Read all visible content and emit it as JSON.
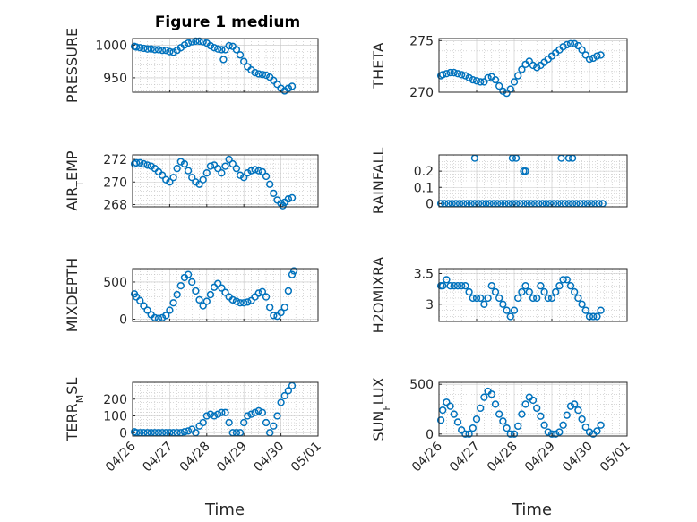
{
  "figure_title": "Figure 1 medium",
  "xlabel": "Time",
  "x_ticks": [
    "04/26",
    "04/27",
    "04/28",
    "04/29",
    "04/30",
    "05/01"
  ],
  "marker_color": "#0072BD",
  "chart_data": [
    {
      "type": "scatter",
      "ylabel": "PRESSURE",
      "ylim": [
        928,
        1010
      ],
      "yticks": [
        950,
        1000
      ],
      "xlim": [
        0,
        5
      ],
      "grid": true,
      "x": [
        0.05,
        0.1,
        0.2,
        0.3,
        0.4,
        0.5,
        0.6,
        0.7,
        0.8,
        0.9,
        1.0,
        1.1,
        1.2,
        1.3,
        1.4,
        1.5,
        1.6,
        1.7,
        1.8,
        1.9,
        2.0,
        2.1,
        2.2,
        2.3,
        2.4,
        2.45,
        2.5,
        2.6,
        2.7,
        2.8,
        2.9,
        3.0,
        3.1,
        3.2,
        3.3,
        3.4,
        3.5,
        3.6,
        3.7,
        3.8,
        3.9,
        4.0,
        4.1,
        4.2,
        4.3
      ],
      "y": [
        998,
        997,
        996,
        995,
        994,
        994,
        993,
        993,
        992,
        992,
        990,
        989,
        992,
        996,
        1000,
        1003,
        1005,
        1006,
        1006,
        1005,
        1003,
        999,
        996,
        994,
        993,
        978,
        993,
        999,
        998,
        993,
        985,
        975,
        967,
        962,
        958,
        956,
        955,
        954,
        951,
        946,
        940,
        934,
        930,
        934,
        937
      ]
    },
    {
      "type": "scatter",
      "ylabel": "THETA",
      "ylim": [
        270,
        275.2
      ],
      "yticks": [
        270,
        275
      ],
      "xlim": [
        0,
        5
      ],
      "grid": true,
      "x": [
        0.05,
        0.1,
        0.2,
        0.3,
        0.4,
        0.5,
        0.6,
        0.7,
        0.8,
        0.9,
        1.0,
        1.1,
        1.2,
        1.3,
        1.4,
        1.5,
        1.6,
        1.7,
        1.8,
        1.9,
        2.0,
        2.1,
        2.2,
        2.3,
        2.4,
        2.5,
        2.6,
        2.7,
        2.8,
        2.9,
        3.0,
        3.1,
        3.2,
        3.3,
        3.4,
        3.5,
        3.6,
        3.7,
        3.8,
        3.9,
        4.0,
        4.1,
        4.2,
        4.3
      ],
      "y": [
        271.6,
        271.7,
        271.8,
        271.9,
        271.9,
        271.8,
        271.7,
        271.6,
        271.4,
        271.2,
        271.1,
        271.0,
        271.0,
        271.4,
        271.5,
        271.2,
        270.6,
        270.1,
        269.9,
        270.3,
        271.0,
        271.6,
        272.2,
        272.7,
        273.0,
        272.6,
        272.4,
        272.6,
        272.9,
        273.2,
        273.5,
        273.8,
        274.1,
        274.4,
        274.6,
        274.7,
        274.7,
        274.5,
        274.1,
        273.6,
        273.2,
        273.3,
        273.5,
        273.6
      ]
    },
    {
      "type": "scatter",
      "ylabel": "AIR_TEMP",
      "ylim": [
        267.8,
        272.4
      ],
      "yticks": [
        268,
        270,
        272
      ],
      "xlim": [
        0,
        5
      ],
      "grid": true,
      "x": [
        0.05,
        0.1,
        0.2,
        0.3,
        0.4,
        0.5,
        0.6,
        0.7,
        0.8,
        0.9,
        1.0,
        1.1,
        1.2,
        1.3,
        1.4,
        1.5,
        1.6,
        1.7,
        1.8,
        1.9,
        2.0,
        2.1,
        2.2,
        2.3,
        2.4,
        2.5,
        2.6,
        2.7,
        2.8,
        2.9,
        3.0,
        3.1,
        3.2,
        3.3,
        3.4,
        3.5,
        3.6,
        3.7,
        3.8,
        3.9,
        4.0,
        4.05,
        4.1,
        4.2,
        4.3
      ],
      "y": [
        271.6,
        271.7,
        271.7,
        271.6,
        271.5,
        271.4,
        271.2,
        270.9,
        270.6,
        270.2,
        270.0,
        270.4,
        271.2,
        271.8,
        271.6,
        271.0,
        270.4,
        270.0,
        269.8,
        270.2,
        270.8,
        271.4,
        271.5,
        271.2,
        270.8,
        271.4,
        272.0,
        271.6,
        271.2,
        270.6,
        270.4,
        270.8,
        271.0,
        271.1,
        271.0,
        270.9,
        270.5,
        269.8,
        269.0,
        268.4,
        268.1,
        267.9,
        268.2,
        268.5,
        268.6
      ]
    },
    {
      "type": "scatter",
      "ylabel": "RAINFALL",
      "ylim": [
        -0.02,
        0.3
      ],
      "yticks": [
        0,
        0.1,
        0.2
      ],
      "xlim": [
        0,
        5
      ],
      "grid": true,
      "x": [
        0.05,
        0.15,
        0.25,
        0.35,
        0.45,
        0.55,
        0.65,
        0.75,
        0.85,
        0.95,
        1.05,
        1.15,
        1.25,
        1.35,
        1.45,
        1.55,
        1.65,
        1.75,
        1.85,
        1.95,
        2.05,
        2.15,
        2.25,
        2.35,
        2.45,
        2.55,
        2.65,
        2.75,
        2.85,
        2.95,
        3.05,
        3.15,
        3.25,
        3.35,
        3.45,
        3.55,
        3.65,
        3.75,
        3.85,
        3.95,
        4.05,
        4.15,
        4.25,
        4.35,
        0.95,
        1.95,
        2.05,
        2.25,
        2.3,
        3.25,
        3.45,
        3.55
      ],
      "y": [
        0,
        0,
        0,
        0,
        0,
        0,
        0,
        0,
        0,
        0,
        0,
        0,
        0,
        0,
        0,
        0,
        0,
        0,
        0,
        0,
        0,
        0,
        0,
        0,
        0,
        0,
        0,
        0,
        0,
        0,
        0,
        0,
        0,
        0,
        0,
        0,
        0,
        0,
        0,
        0,
        0,
        0,
        0,
        0,
        0.28,
        0.28,
        0.28,
        0.2,
        0.2,
        0.28,
        0.28,
        0.28
      ]
    },
    {
      "type": "scatter",
      "ylabel": "MIXDEPTH",
      "ylim": [
        -30,
        680
      ],
      "yticks": [
        0,
        500
      ],
      "xlim": [
        0,
        5
      ],
      "grid": true,
      "x": [
        0.05,
        0.1,
        0.2,
        0.3,
        0.4,
        0.5,
        0.6,
        0.7,
        0.8,
        0.9,
        1.0,
        1.1,
        1.2,
        1.3,
        1.4,
        1.5,
        1.6,
        1.7,
        1.8,
        1.9,
        2.0,
        2.1,
        2.2,
        2.3,
        2.4,
        2.5,
        2.6,
        2.7,
        2.8,
        2.9,
        3.0,
        3.1,
        3.2,
        3.3,
        3.4,
        3.5,
        3.6,
        3.7,
        3.8,
        3.9,
        4.0,
        4.1,
        4.2,
        4.3,
        4.35
      ],
      "y": [
        340,
        300,
        250,
        180,
        120,
        60,
        20,
        10,
        20,
        50,
        120,
        220,
        330,
        450,
        560,
        600,
        500,
        380,
        260,
        180,
        240,
        330,
        430,
        480,
        420,
        360,
        300,
        260,
        240,
        220,
        220,
        230,
        250,
        300,
        350,
        370,
        300,
        160,
        50,
        40,
        90,
        160,
        380,
        600,
        650
      ]
    },
    {
      "type": "scatter",
      "ylabel": "H2OMIXRA",
      "ylim": [
        2.72,
        3.58
      ],
      "yticks": [
        3,
        3.5
      ],
      "xlim": [
        0,
        5
      ],
      "grid": true,
      "x": [
        0.05,
        0.1,
        0.2,
        0.3,
        0.4,
        0.5,
        0.6,
        0.7,
        0.8,
        0.9,
        1.0,
        1.1,
        1.2,
        1.3,
        1.4,
        1.5,
        1.6,
        1.7,
        1.8,
        1.9,
        2.0,
        2.1,
        2.2,
        2.3,
        2.4,
        2.5,
        2.6,
        2.7,
        2.8,
        2.9,
        3.0,
        3.1,
        3.2,
        3.3,
        3.4,
        3.5,
        3.6,
        3.7,
        3.8,
        3.9,
        4.0,
        4.1,
        4.2,
        4.3
      ],
      "y": [
        3.3,
        3.3,
        3.4,
        3.3,
        3.3,
        3.3,
        3.3,
        3.3,
        3.2,
        3.1,
        3.1,
        3.1,
        3.0,
        3.1,
        3.3,
        3.2,
        3.1,
        3.0,
        2.9,
        2.8,
        2.9,
        3.1,
        3.2,
        3.3,
        3.2,
        3.1,
        3.1,
        3.3,
        3.2,
        3.1,
        3.1,
        3.2,
        3.3,
        3.4,
        3.4,
        3.3,
        3.2,
        3.1,
        3.0,
        2.9,
        2.8,
        2.8,
        2.8,
        2.9
      ]
    },
    {
      "type": "scatter",
      "ylabel": "TERR_MSL",
      "ylim": [
        -20,
        300
      ],
      "yticks": [
        0,
        100,
        200
      ],
      "xlim": [
        0,
        5
      ],
      "grid": true,
      "x": [
        0.05,
        0.1,
        0.2,
        0.3,
        0.4,
        0.5,
        0.6,
        0.7,
        0.8,
        0.9,
        1.0,
        1.1,
        1.2,
        1.3,
        1.4,
        1.5,
        1.6,
        1.7,
        1.8,
        1.9,
        2.0,
        2.1,
        2.2,
        2.3,
        2.4,
        2.5,
        2.6,
        2.7,
        2.8,
        2.9,
        3.0,
        3.1,
        3.2,
        3.3,
        3.4,
        3.5,
        3.6,
        3.7,
        3.8,
        3.9,
        4.0,
        4.1,
        4.2,
        4.3
      ],
      "y": [
        5,
        0,
        0,
        0,
        0,
        0,
        0,
        0,
        0,
        0,
        0,
        0,
        0,
        0,
        5,
        10,
        20,
        0,
        40,
        60,
        100,
        110,
        100,
        110,
        120,
        120,
        60,
        0,
        0,
        0,
        60,
        100,
        110,
        120,
        130,
        120,
        60,
        0,
        40,
        100,
        180,
        220,
        250,
        280
      ]
    },
    {
      "type": "scatter",
      "ylabel": "SUN_FLUX",
      "ylim": [
        -20,
        520
      ],
      "yticks": [
        0,
        500
      ],
      "xlim": [
        0,
        5
      ],
      "grid": true,
      "x": [
        0.05,
        0.1,
        0.2,
        0.3,
        0.4,
        0.5,
        0.6,
        0.7,
        0.8,
        0.9,
        1.0,
        1.1,
        1.2,
        1.3,
        1.4,
        1.5,
        1.6,
        1.7,
        1.8,
        1.9,
        2.0,
        2.1,
        2.2,
        2.3,
        2.4,
        2.5,
        2.6,
        2.7,
        2.8,
        2.9,
        3.0,
        3.1,
        3.2,
        3.3,
        3.4,
        3.5,
        3.6,
        3.7,
        3.8,
        3.9,
        4.0,
        4.1,
        4.2,
        4.3
      ],
      "y": [
        140,
        240,
        320,
        280,
        200,
        120,
        40,
        0,
        0,
        60,
        150,
        260,
        370,
        430,
        400,
        300,
        200,
        130,
        60,
        0,
        0,
        80,
        200,
        300,
        370,
        340,
        260,
        180,
        90,
        20,
        0,
        0,
        20,
        90,
        190,
        280,
        300,
        240,
        150,
        70,
        20,
        0,
        30,
        90
      ]
    }
  ]
}
